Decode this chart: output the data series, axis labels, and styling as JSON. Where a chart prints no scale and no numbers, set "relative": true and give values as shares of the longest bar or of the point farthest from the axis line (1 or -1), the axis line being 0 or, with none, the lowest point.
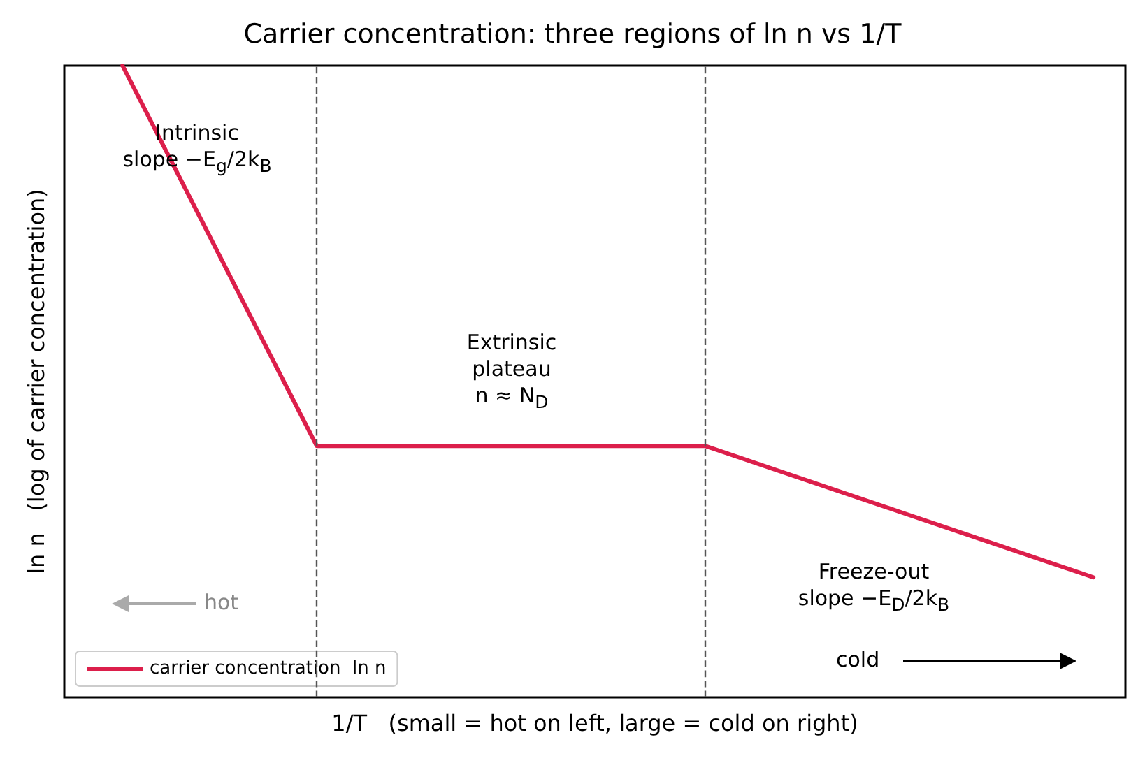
{
  "chart_data": {
    "type": "line",
    "title": "Carrier concentration: three regions of ln n vs 1/T",
    "xlabel": "1/T   (small = hot on left, large = cold on right)",
    "ylabel": "ln n   (log of carrier concentration)",
    "categories": [
      null,
      null,
      null,
      null,
      null,
      null
    ],
    "relative": true,
    "series": [
      {
        "name": "carrier concentration  ln n",
        "color": "#dc1f4b",
        "values": [
          1,
          0.398,
          0.398,
          0.398,
          0.294,
          0.19
        ]
      }
    ],
    "annotations": [
      "Intrinsic\nslope −E$_{g}$/2k$_{B}$",
      "Extrinsic\nplateau\nn ≈ N$_{D}$",
      "Freeze-out\nslope −E$_{D}$/2k$_{B}$",
      "cold",
      "hot"
    ],
    "marker": "none",
    "line_style": "solid",
    "grid": false,
    "legend": "bottom left",
    "tick_labels": false
  }
}
